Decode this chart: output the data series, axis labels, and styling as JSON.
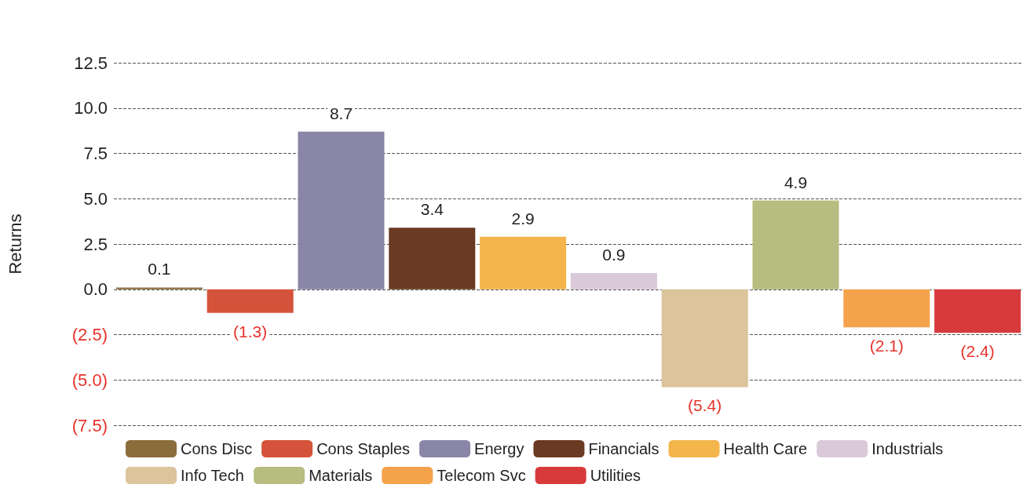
{
  "chart_data": {
    "type": "bar",
    "ylabel": "Returns",
    "categories": [
      null,
      null,
      null,
      null,
      null,
      null,
      null,
      null,
      null,
      null
    ],
    "series": [
      {
        "name": "Cons Disc",
        "color": "#8b6d3c",
        "values": [
          0.1,
          null,
          null,
          null,
          null,
          null,
          null,
          null,
          null,
          null
        ],
        "value_labels": [
          "0.1",
          null,
          null,
          null,
          null,
          null,
          null,
          null,
          null,
          null
        ]
      },
      {
        "name": "Cons Staples",
        "color": "#d5533a",
        "values": [
          null,
          -1.3,
          null,
          null,
          null,
          null,
          null,
          null,
          null,
          null
        ],
        "value_labels": [
          null,
          "(1.3)",
          null,
          null,
          null,
          null,
          null,
          null,
          null,
          null
        ]
      },
      {
        "name": "Energy",
        "color": "#8986a8",
        "values": [
          null,
          null,
          8.7,
          null,
          null,
          null,
          null,
          null,
          null,
          null
        ],
        "value_labels": [
          null,
          null,
          "8.7",
          null,
          null,
          null,
          null,
          null,
          null,
          null
        ]
      },
      {
        "name": "Financials",
        "color": "#6a3a22",
        "values": [
          null,
          null,
          null,
          3.4,
          null,
          null,
          null,
          null,
          null,
          null
        ],
        "value_labels": [
          null,
          null,
          null,
          "3.4",
          null,
          null,
          null,
          null,
          null,
          null
        ]
      },
      {
        "name": "Health Care",
        "color": "#f3b54c",
        "values": [
          null,
          null,
          null,
          null,
          2.9,
          null,
          null,
          null,
          null,
          null
        ],
        "value_labels": [
          null,
          null,
          null,
          null,
          "2.9",
          null,
          null,
          null,
          null,
          null
        ]
      },
      {
        "name": "Industrials",
        "color": "#d9c9d9",
        "values": [
          null,
          null,
          null,
          null,
          null,
          0.9,
          null,
          null,
          null,
          null
        ],
        "value_labels": [
          null,
          null,
          null,
          null,
          null,
          "0.9",
          null,
          null,
          null,
          null
        ]
      },
      {
        "name": "Info Tech",
        "color": "#dcc49c",
        "values": [
          null,
          null,
          null,
          null,
          null,
          null,
          -5.4,
          null,
          null,
          null
        ],
        "value_labels": [
          null,
          null,
          null,
          null,
          null,
          null,
          "(5.4)",
          null,
          null,
          null
        ]
      },
      {
        "name": "Materials",
        "color": "#b7bc80",
        "values": [
          null,
          null,
          null,
          null,
          null,
          null,
          null,
          4.9,
          null,
          null
        ],
        "value_labels": [
          null,
          null,
          null,
          null,
          null,
          null,
          null,
          "4.9",
          null,
          null
        ]
      },
      {
        "name": "Telecom Svc",
        "color": "#f5a24c",
        "values": [
          null,
          null,
          null,
          null,
          null,
          null,
          null,
          null,
          -2.1,
          null
        ],
        "value_labels": [
          null,
          null,
          null,
          null,
          null,
          null,
          null,
          null,
          "(2.1)",
          null
        ]
      },
      {
        "name": "Utilities",
        "color": "#d83a3c",
        "values": [
          null,
          null,
          null,
          null,
          null,
          null,
          null,
          null,
          null,
          -2.4
        ],
        "value_labels": [
          null,
          null,
          null,
          null,
          null,
          null,
          null,
          null,
          null,
          "(2.4)"
        ]
      }
    ],
    "ylim": [
      -7.5,
      12.5
    ],
    "yticks": [
      {
        "value": -7.5,
        "label": "(7.5)"
      },
      {
        "value": -5,
        "label": "(5.0)"
      },
      {
        "value": -2.5,
        "label": "(2.5)"
      },
      {
        "value": 0,
        "label": "0.0"
      },
      {
        "value": 2.5,
        "label": "2.5"
      },
      {
        "value": 5,
        "label": "5.0"
      },
      {
        "value": 7.5,
        "label": "7.5"
      },
      {
        "value": 10,
        "label": "10.0"
      },
      {
        "value": 12.5,
        "label": "12.5"
      }
    ],
    "grid": "y",
    "legend": "bottom"
  }
}
